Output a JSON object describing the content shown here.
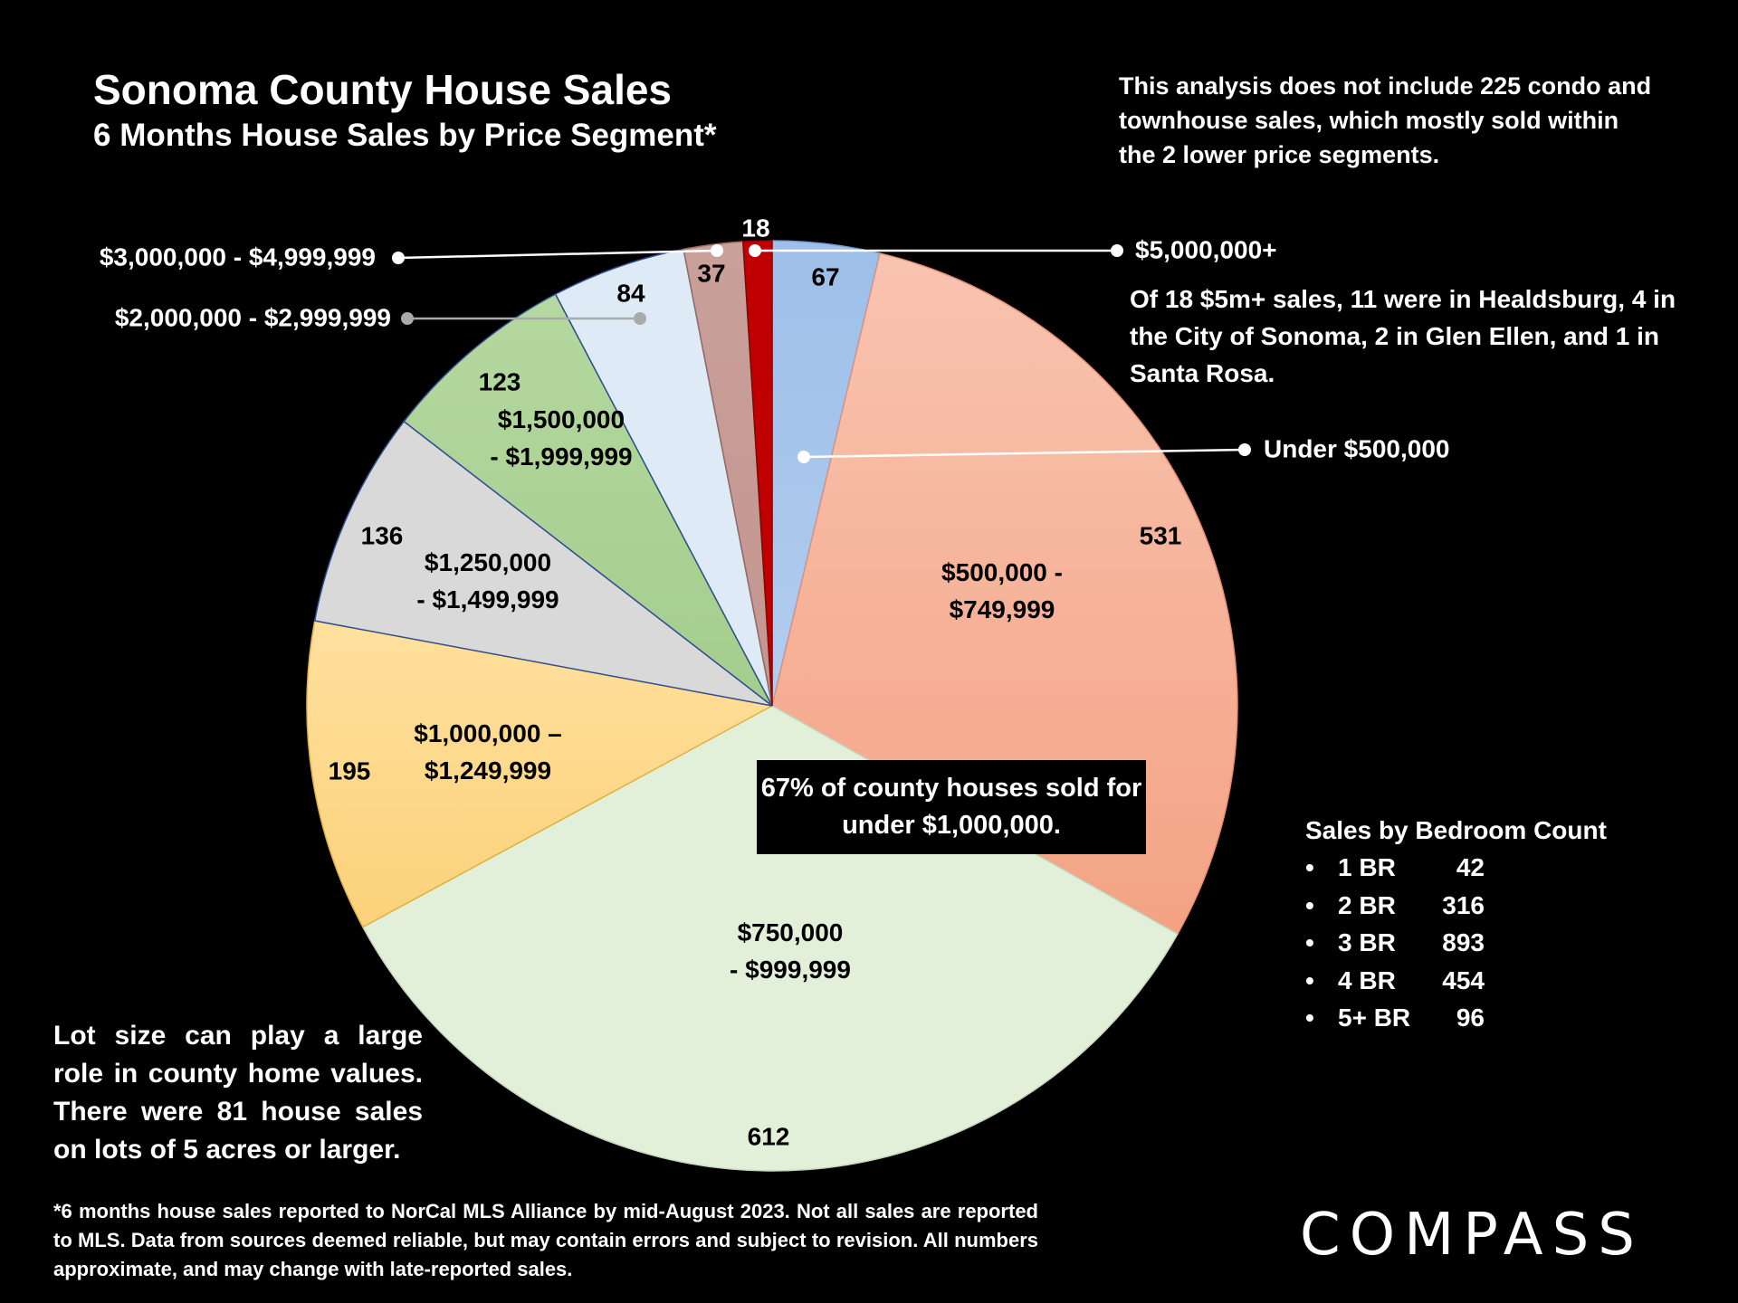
{
  "title": "Sonoma County House Sales",
  "subtitle": "6 Months House Sales by Price Segment*",
  "note_top": "This analysis does not include 225 condo and townhouse sales, which mostly sold within the 2 lower price segments.",
  "note_5m": "Of 18 $5m+ sales, 11 were in Healdsburg, 4 in the City of Sonoma, 2 in Glen Ellen, and 1 in Santa Rosa.",
  "callout": "67% of county houses sold for under $1,000,000.",
  "note_lot": "Lot size can play a large role in county home values. There were 81 house sales on lots of 5 acres or larger.",
  "footnote": "*6 months house sales reported to NorCal MLS Alliance by mid-August 2023. Not all sales are reported to MLS. Data from sources deemed reliable, but may contain errors and subject to revision. All numbers approximate, and may change with late-reported sales.",
  "bedroom": {
    "heading": "Sales by Bedroom Count",
    "bullet": "•",
    "rows": [
      {
        "label": "1 BR",
        "count": "42"
      },
      {
        "label": "2 BR",
        "count": "316"
      },
      {
        "label": "3 BR",
        "count": "893"
      },
      {
        "label": "4 BR",
        "count": "454"
      },
      {
        "label": "5+ BR",
        "count": "96"
      }
    ]
  },
  "logo": "COMPASS",
  "chart_data": {
    "type": "pie",
    "title": "Sonoma County House Sales",
    "subtitle": "6 Months House Sales by Price Segment*",
    "start_angle": "12 o'clock, clockwise",
    "slices": [
      {
        "label": "Under $500,000",
        "label_lines": [
          "Under $500,000"
        ],
        "value": 67,
        "color": "#9dbfe8",
        "color2": "#b3cdef",
        "edge": "#7a9fd0"
      },
      {
        "label": "$500,000 - $749,999",
        "label_lines": [
          "$500,000 -",
          "$749,999"
        ],
        "value": 531,
        "color": "#f8c4b0",
        "color2": "#f4a384",
        "edge": "#e0907a"
      },
      {
        "label": "$750,000 - $999,999",
        "label_lines": [
          "$750,000",
          "- $999,999"
        ],
        "value": 612,
        "color": "#e2efd9",
        "color2": "#e2efd9",
        "edge": "#c8d8be"
      },
      {
        "label": "$1,000,000 – $1,249,999",
        "label_lines": [
          "$1,000,000 –",
          "$1,249,999"
        ],
        "value": 195,
        "color": "#ffe09e",
        "color2": "#fcd27a",
        "edge": "#e0b040"
      },
      {
        "label": "$1,250,000 - $1,499,999",
        "label_lines": [
          "$1,250,000",
          "- $1,499,999"
        ],
        "value": 136,
        "color": "#d9d9d9",
        "color2": "#d9d9d9",
        "edge": "#2f4f8f"
      },
      {
        "label": "$1,500,000 - $1,999,999",
        "label_lines": [
          "$1,500,000",
          "- $1,999,999"
        ],
        "value": 123,
        "color": "#b5d8a0",
        "color2": "#a4cd8c",
        "edge": "#2f4f8f"
      },
      {
        "label": "$2,000,000 - $2,999,999",
        "label_lines": [
          "$2,000,000 - $2,999,999"
        ],
        "value": 84,
        "color": "#deebf7",
        "color2": "#deebf7",
        "edge": "#2f4f8f"
      },
      {
        "label": "$3,000,000 - $4,999,999",
        "label_lines": [
          "$3,000,000 - $4,999,999"
        ],
        "value": 37,
        "color": "#c9a09a",
        "color2": "#c49690",
        "edge": "#9a6a60"
      },
      {
        "label": "$5,000,000+",
        "label_lines": [
          "$5,000,000+"
        ],
        "value": 18,
        "color": "#c00000",
        "color2": "#c00000",
        "edge": "#900000"
      }
    ]
  }
}
